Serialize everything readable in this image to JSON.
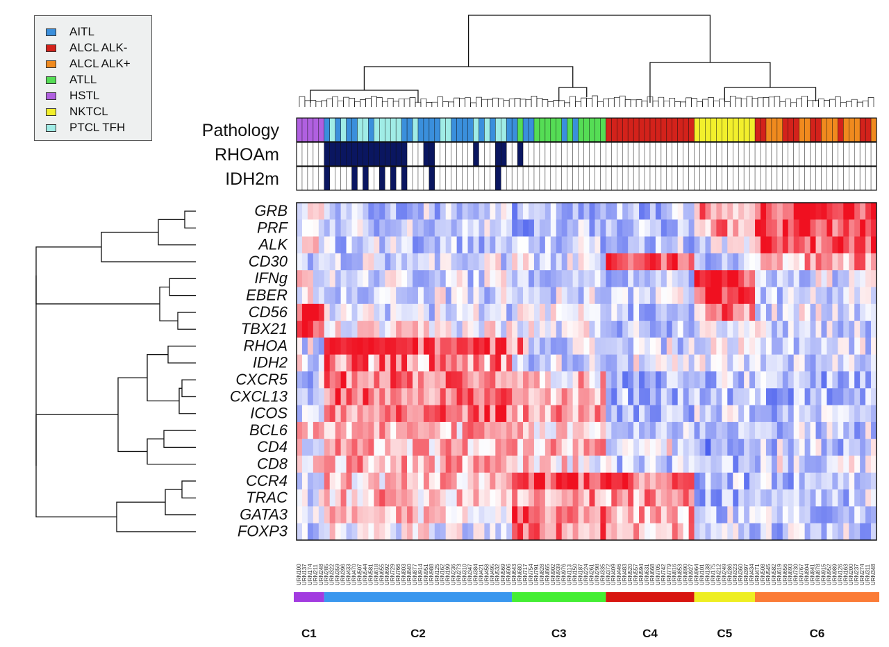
{
  "chart_data": {
    "type": "heatmap",
    "title": "",
    "legend": {
      "position": "top-left",
      "entries": [
        {
          "label": "AITL",
          "color": "#3a8fdc"
        },
        {
          "label": "ALCL ALK-",
          "color": "#d3221b"
        },
        {
          "label": "ALCL ALK+",
          "color": "#f08a1e"
        },
        {
          "label": "ATLL",
          "color": "#55dd55"
        },
        {
          "label": "HSTL",
          "color": "#b060e0"
        },
        {
          "label": "NKTCL",
          "color": "#f2ef2c"
        },
        {
          "label": "PTCL TFH",
          "color": "#a0ece6"
        }
      ]
    },
    "annotation_tracks": [
      "Pathology",
      "RHOAm",
      "IDH2m"
    ],
    "genes": [
      "GRB",
      "PRF",
      "ALK",
      "CD30",
      "IFNg",
      "EBER",
      "CD56",
      "TBX21",
      "RHOA",
      "IDH2",
      "CXCR5",
      "CXCL13",
      "ICOS",
      "BCL6",
      "CD4",
      "CD8",
      "CCR4",
      "TRAC",
      "GATA3",
      "FOXP3"
    ],
    "n_samples": 105,
    "clusters": [
      {
        "label": "C1",
        "color": "#a23be0",
        "n": 5
      },
      {
        "label": "C2",
        "color": "#3a97ee",
        "n": 34
      },
      {
        "label": "C3",
        "color": "#44ee33",
        "n": 17
      },
      {
        "label": "C4",
        "color": "#d8150f",
        "n": 16
      },
      {
        "label": "C5",
        "color": "#eeee22",
        "n": 11
      },
      {
        "label": "C6",
        "color": "#fb7b36",
        "n": 22
      }
    ],
    "color_scale": {
      "low": "#3f56ee",
      "mid": "#ffffff",
      "high": "#f01020"
    },
    "sample_label_prefix": "URN"
  }
}
